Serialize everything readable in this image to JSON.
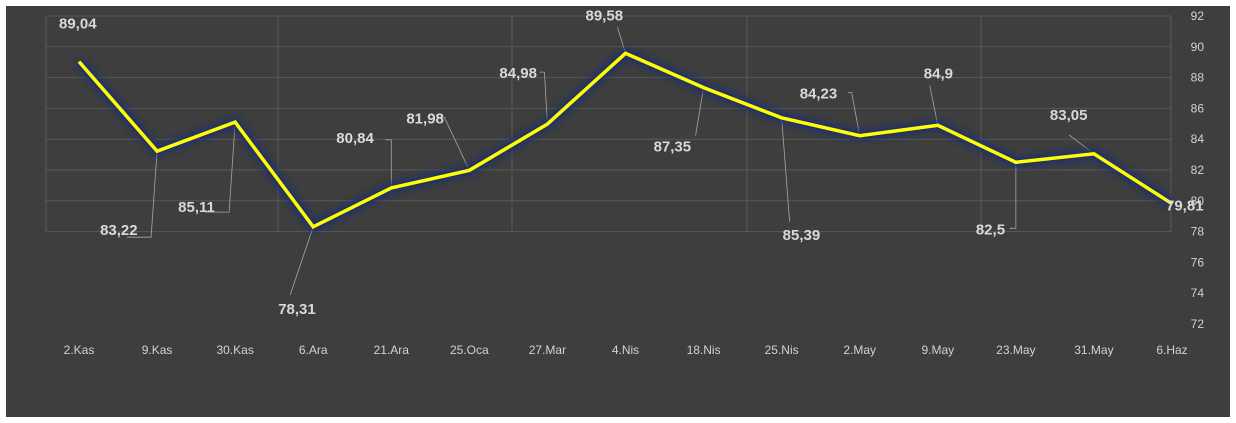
{
  "chart_data": {
    "type": "line",
    "title": "",
    "xlabel": "",
    "ylabel": "",
    "categories": [
      "2.Kas",
      "9.Kas",
      "30.Kas",
      "6.Ara",
      "21.Ara",
      "25.Oca",
      "27.Mar",
      "4.Nis",
      "18.Nis",
      "25.Nis",
      "2.May",
      "9.May",
      "23.May",
      "31.May",
      "6.Haz"
    ],
    "series": [
      {
        "values": [
          89.04,
          83.22,
          85.11,
          78.31,
          80.84,
          81.98,
          84.98,
          89.58,
          87.35,
          85.39,
          84.23,
          84.9,
          82.5,
          83.05,
          79.81
        ],
        "labels": [
          "89,04",
          "83,22",
          "85,11",
          "78,31",
          "80,84",
          "81,98",
          "84,98",
          "89,58",
          "87,35",
          "85,39",
          "84,23",
          "84,9",
          "82,5",
          "83,05",
          "79,81"
        ],
        "color": "#ffff00"
      }
    ],
    "ylim": [
      72,
      92
    ],
    "yticks": [
      72,
      74,
      76,
      78,
      80,
      82,
      84,
      86,
      88,
      90,
      92
    ],
    "y_axis_side": "right",
    "grid": true,
    "legend": "none",
    "background": "#3e3e3e",
    "gridline_color": "#595959"
  }
}
